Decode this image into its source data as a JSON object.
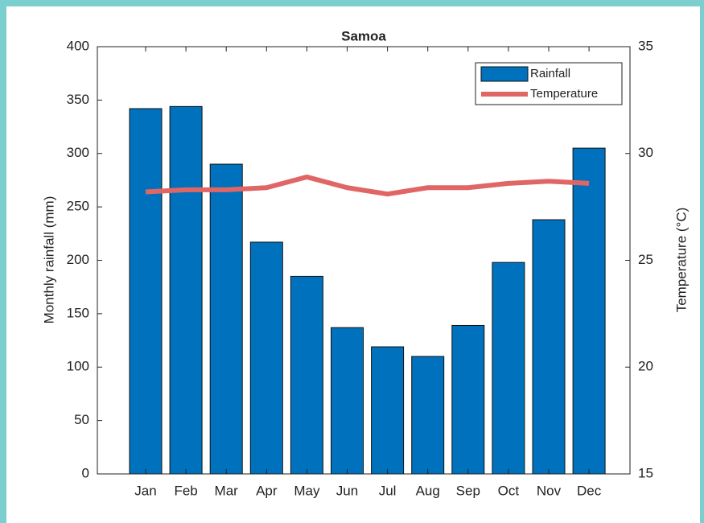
{
  "chart_data": {
    "type": "bar",
    "title": "Samoa",
    "categories": [
      "Jan",
      "Feb",
      "Mar",
      "Apr",
      "May",
      "Jun",
      "Jul",
      "Aug",
      "Sep",
      "Oct",
      "Nov",
      "Dec"
    ],
    "ylabel": "Monthly rainfall (mm)",
    "y2label": "Temperature (°C)",
    "ylim": [
      0,
      400
    ],
    "yticks": [
      0,
      50,
      100,
      150,
      200,
      250,
      300,
      350,
      400
    ],
    "y2lim": [
      15,
      35
    ],
    "y2ticks": [
      15,
      20,
      25,
      30,
      35
    ],
    "legend": "northeast",
    "series": [
      {
        "name": "Rainfall",
        "type": "bar",
        "color": "#0072bd",
        "values": [
          342,
          344,
          290,
          217,
          185,
          137,
          119,
          110,
          139,
          198,
          238,
          305
        ]
      },
      {
        "name": "Temperature",
        "type": "line",
        "axis": "y2",
        "color": "#e06666",
        "values": [
          28.2,
          28.3,
          28.3,
          28.4,
          28.9,
          28.4,
          28.1,
          28.4,
          28.4,
          28.6,
          28.7,
          28.6
        ]
      }
    ]
  }
}
